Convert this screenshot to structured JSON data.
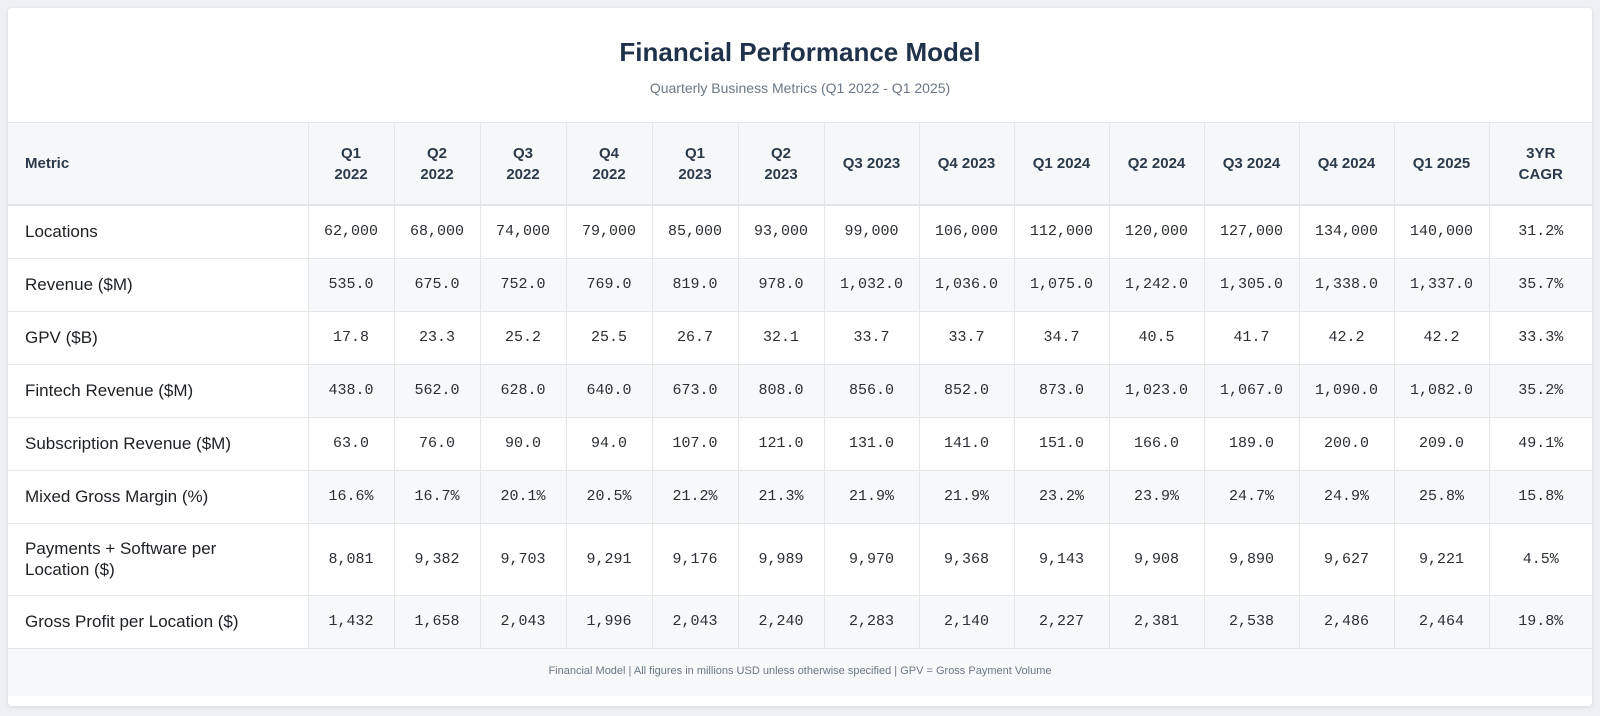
{
  "header": {
    "title": "Financial Performance Model",
    "subtitle": "Quarterly Business Metrics (Q1 2022 - Q1 2025)"
  },
  "table": {
    "columns": [
      "Metric",
      "Q1 2022",
      "Q2 2022",
      "Q3 2022",
      "Q4 2022",
      "Q1 2023",
      "Q2 2023",
      "Q3 2023",
      "Q4 2023",
      "Q1 2024",
      "Q2 2024",
      "Q3 2024",
      "Q4 2024",
      "Q1 2025",
      "3YR CAGR"
    ],
    "rows": [
      {
        "metric": "Locations",
        "values": [
          "62,000",
          "68,000",
          "74,000",
          "79,000",
          "85,000",
          "93,000",
          "99,000",
          "106,000",
          "112,000",
          "120,000",
          "127,000",
          "134,000",
          "140,000",
          "31.2%"
        ]
      },
      {
        "metric": "Revenue ($M)",
        "values": [
          "535.0",
          "675.0",
          "752.0",
          "769.0",
          "819.0",
          "978.0",
          "1,032.0",
          "1,036.0",
          "1,075.0",
          "1,242.0",
          "1,305.0",
          "1,338.0",
          "1,337.0",
          "35.7%"
        ]
      },
      {
        "metric": "GPV ($B)",
        "values": [
          "17.8",
          "23.3",
          "25.2",
          "25.5",
          "26.7",
          "32.1",
          "33.7",
          "33.7",
          "34.7",
          "40.5",
          "41.7",
          "42.2",
          "42.2",
          "33.3%"
        ]
      },
      {
        "metric": "Fintech Revenue ($M)",
        "values": [
          "438.0",
          "562.0",
          "628.0",
          "640.0",
          "673.0",
          "808.0",
          "856.0",
          "852.0",
          "873.0",
          "1,023.0",
          "1,067.0",
          "1,090.0",
          "1,082.0",
          "35.2%"
        ]
      },
      {
        "metric": "Subscription Revenue ($M)",
        "values": [
          "63.0",
          "76.0",
          "90.0",
          "94.0",
          "107.0",
          "121.0",
          "131.0",
          "141.0",
          "151.0",
          "166.0",
          "189.0",
          "200.0",
          "209.0",
          "49.1%"
        ]
      },
      {
        "metric": "Mixed Gross Margin (%)",
        "values": [
          "16.6%",
          "16.7%",
          "20.1%",
          "20.5%",
          "21.2%",
          "21.3%",
          "21.9%",
          "21.9%",
          "23.2%",
          "23.9%",
          "24.7%",
          "24.9%",
          "25.8%",
          "15.8%"
        ]
      },
      {
        "metric": "Payments + Software per Location ($)",
        "values": [
          "8,081",
          "9,382",
          "9,703",
          "9,291",
          "9,176",
          "9,989",
          "9,970",
          "9,368",
          "9,143",
          "9,908",
          "9,890",
          "9,627",
          "9,221",
          "4.5%"
        ]
      },
      {
        "metric": "Gross Profit per Location ($)",
        "values": [
          "1,432",
          "1,658",
          "2,043",
          "1,996",
          "2,043",
          "2,240",
          "2,283",
          "2,140",
          "2,227",
          "2,381",
          "2,538",
          "2,486",
          "2,464",
          "19.8%"
        ]
      }
    ]
  },
  "footer": {
    "note": "Financial Model | All figures in millions USD unless otherwise specified | GPV = Gross Payment Volume"
  }
}
